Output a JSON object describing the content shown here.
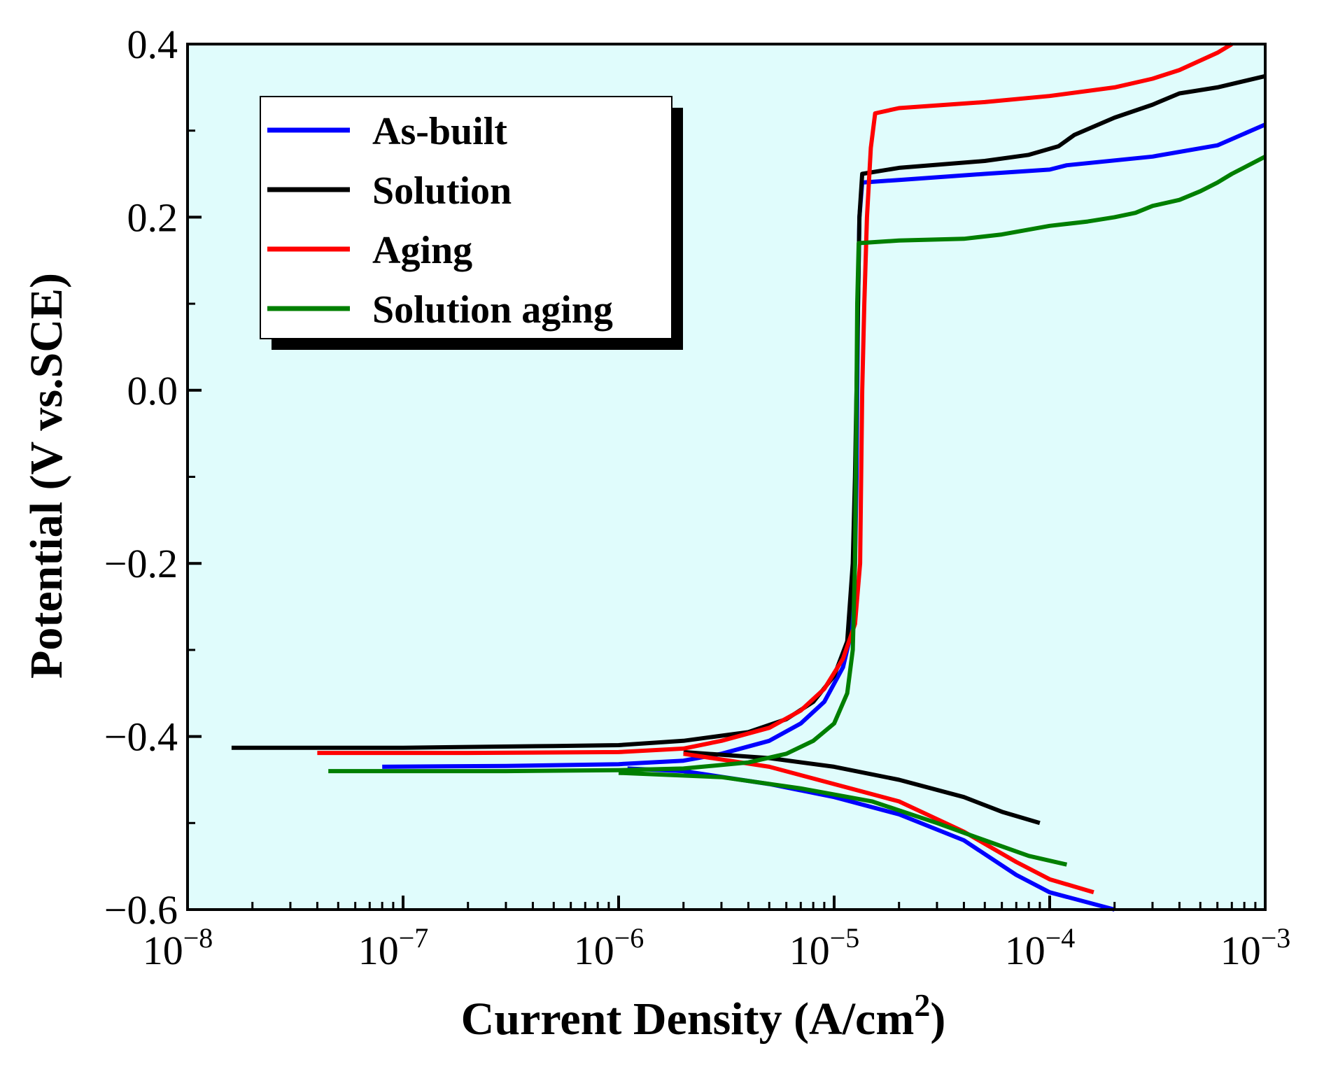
{
  "chart_data": {
    "type": "line",
    "title": "",
    "xlabel": "Current Density (A/cm",
    "xlabel_sup": "2",
    "xlabel_close": ")",
    "ylabel": "Potential (V vs.SCE)",
    "xscale": "log",
    "xlim": [
      1e-08,
      0.001
    ],
    "ylim": [
      -0.6,
      0.4
    ],
    "x_ticks": [
      {
        "value": 1e-08,
        "base": "10",
        "exp": "−8"
      },
      {
        "value": 1e-07,
        "base": "10",
        "exp": "−7"
      },
      {
        "value": 1e-06,
        "base": "10",
        "exp": "−6"
      },
      {
        "value": 1e-05,
        "base": "10",
        "exp": "−5"
      },
      {
        "value": 0.0001,
        "base": "10",
        "exp": "−4"
      },
      {
        "value": 0.001,
        "base": "10",
        "exp": "−3"
      }
    ],
    "y_ticks": [
      {
        "value": 0.4,
        "label": "0.4"
      },
      {
        "value": 0.2,
        "label": "0.2"
      },
      {
        "value": 0.0,
        "label": "0.0"
      },
      {
        "value": -0.2,
        "label": "−0.2"
      },
      {
        "value": -0.4,
        "label": "−0.4"
      },
      {
        "value": -0.6,
        "label": "−0.6"
      }
    ],
    "background_color": "#e0fcfc",
    "legend_position": "top-left",
    "series": [
      {
        "name": "As-built",
        "color": "#0000ff",
        "points": [
          [
            8e-08,
            -0.435
          ],
          [
            3e-07,
            -0.434
          ],
          [
            1e-06,
            -0.432
          ],
          [
            2e-06,
            -0.428
          ],
          [
            3e-06,
            -0.42
          ],
          [
            5e-06,
            -0.405
          ],
          [
            7e-06,
            -0.385
          ],
          [
            9e-06,
            -0.36
          ],
          [
            1.1e-05,
            -0.32
          ],
          [
            1.2e-05,
            -0.28
          ],
          [
            1.25e-05,
            -0.2
          ],
          [
            1.27e-05,
            -0.1
          ],
          [
            1.28e-05,
            0.0
          ],
          [
            1.29e-05,
            0.1
          ],
          [
            1.31e-05,
            0.2
          ],
          [
            1.35e-05,
            0.24
          ],
          [
            2e-05,
            0.243
          ],
          [
            5e-05,
            0.25
          ],
          [
            0.0001,
            0.255
          ],
          [
            0.00012,
            0.26
          ],
          [
            0.0003,
            0.27
          ],
          [
            0.0006,
            0.283
          ],
          [
            0.001,
            0.307
          ]
        ],
        "cathodic": [
          [
            1.1e-06,
            -0.437
          ],
          [
            2e-06,
            -0.44
          ],
          [
            5e-06,
            -0.455
          ],
          [
            1e-05,
            -0.47
          ],
          [
            2e-05,
            -0.49
          ],
          [
            4e-05,
            -0.52
          ],
          [
            7e-05,
            -0.56
          ],
          [
            0.0001,
            -0.58
          ],
          [
            0.0002,
            -0.6
          ]
        ]
      },
      {
        "name": "Solution",
        "color": "#000000",
        "points": [
          [
            1.6e-08,
            -0.413
          ],
          [
            1e-07,
            -0.413
          ],
          [
            5e-07,
            -0.411
          ],
          [
            1e-06,
            -0.41
          ],
          [
            2e-06,
            -0.405
          ],
          [
            4e-06,
            -0.395
          ],
          [
            6e-06,
            -0.38
          ],
          [
            8e-06,
            -0.36
          ],
          [
            1e-05,
            -0.33
          ],
          [
            1.15e-05,
            -0.29
          ],
          [
            1.22e-05,
            -0.2
          ],
          [
            1.25e-05,
            -0.1
          ],
          [
            1.27e-05,
            0.0
          ],
          [
            1.29e-05,
            0.1
          ],
          [
            1.31e-05,
            0.2
          ],
          [
            1.35e-05,
            0.25
          ],
          [
            2e-05,
            0.257
          ],
          [
            5e-05,
            0.265
          ],
          [
            8e-05,
            0.272
          ],
          [
            0.00011,
            0.282
          ],
          [
            0.00013,
            0.295
          ],
          [
            0.0002,
            0.315
          ],
          [
            0.0003,
            0.33
          ],
          [
            0.0004,
            0.343
          ],
          [
            0.0006,
            0.35
          ],
          [
            0.001,
            0.363
          ]
        ],
        "cathodic": [
          [
            2e-06,
            -0.418
          ],
          [
            5e-06,
            -0.425
          ],
          [
            1e-05,
            -0.435
          ],
          [
            2e-05,
            -0.45
          ],
          [
            4e-05,
            -0.47
          ],
          [
            6e-05,
            -0.487
          ],
          [
            9e-05,
            -0.5
          ]
        ]
      },
      {
        "name": "Aging",
        "color": "#ff0000",
        "points": [
          [
            4e-08,
            -0.419
          ],
          [
            2e-07,
            -0.419
          ],
          [
            1e-06,
            -0.418
          ],
          [
            2e-06,
            -0.414
          ],
          [
            3e-06,
            -0.405
          ],
          [
            5e-06,
            -0.39
          ],
          [
            7e-06,
            -0.37
          ],
          [
            9e-06,
            -0.345
          ],
          [
            1.1e-05,
            -0.31
          ],
          [
            1.25e-05,
            -0.27
          ],
          [
            1.32e-05,
            -0.2
          ],
          [
            1.35e-05,
            0.0
          ],
          [
            1.38e-05,
            0.1
          ],
          [
            1.42e-05,
            0.2
          ],
          [
            1.48e-05,
            0.28
          ],
          [
            1.55e-05,
            0.32
          ],
          [
            2e-05,
            0.326
          ],
          [
            5e-05,
            0.333
          ],
          [
            0.0001,
            0.34
          ],
          [
            0.0002,
            0.35
          ],
          [
            0.0003,
            0.36
          ],
          [
            0.0004,
            0.37
          ],
          [
            0.0006,
            0.39
          ],
          [
            0.0007,
            0.4
          ]
        ],
        "cathodic": [
          [
            2e-06,
            -0.42
          ],
          [
            5e-06,
            -0.435
          ],
          [
            1e-05,
            -0.455
          ],
          [
            2e-05,
            -0.475
          ],
          [
            4e-05,
            -0.51
          ],
          [
            7e-05,
            -0.545
          ],
          [
            0.0001,
            -0.565
          ],
          [
            0.00016,
            -0.58
          ]
        ]
      },
      {
        "name": "Solution aging",
        "color": "#007f00",
        "points": [
          [
            4.5e-08,
            -0.44
          ],
          [
            3e-07,
            -0.44
          ],
          [
            1e-06,
            -0.439
          ],
          [
            2e-06,
            -0.437
          ],
          [
            4e-06,
            -0.43
          ],
          [
            6e-06,
            -0.42
          ],
          [
            8e-06,
            -0.405
          ],
          [
            1e-05,
            -0.385
          ],
          [
            1.15e-05,
            -0.35
          ],
          [
            1.22e-05,
            -0.3
          ],
          [
            1.25e-05,
            -0.2
          ],
          [
            1.26e-05,
            -0.1
          ],
          [
            1.27e-05,
            0.0
          ],
          [
            1.28e-05,
            0.1
          ],
          [
            1.3e-05,
            0.17
          ],
          [
            2e-05,
            0.173
          ],
          [
            4e-05,
            0.175
          ],
          [
            6e-05,
            0.18
          ],
          [
            0.0001,
            0.19
          ],
          [
            0.00015,
            0.195
          ],
          [
            0.0002,
            0.2
          ],
          [
            0.00025,
            0.205
          ],
          [
            0.0003,
            0.213
          ],
          [
            0.0004,
            0.22
          ],
          [
            0.0005,
            0.23
          ],
          [
            0.0006,
            0.24
          ],
          [
            0.0007,
            0.25
          ],
          [
            0.001,
            0.27
          ]
        ],
        "cathodic": [
          [
            1e-06,
            -0.442
          ],
          [
            3e-06,
            -0.447
          ],
          [
            7e-06,
            -0.46
          ],
          [
            1.5e-05,
            -0.475
          ],
          [
            3e-05,
            -0.5
          ],
          [
            5e-05,
            -0.52
          ],
          [
            8e-05,
            -0.538
          ],
          [
            0.00012,
            -0.548
          ]
        ]
      }
    ]
  }
}
